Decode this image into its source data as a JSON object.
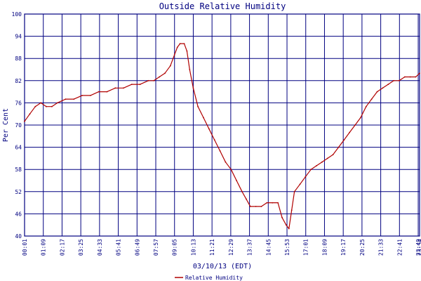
{
  "chart_data": {
    "type": "line",
    "title": "Outside Relative Humidity",
    "xlabel": "03/10/13 (EDT)",
    "ylabel": "Per Cent",
    "ylim": [
      40,
      100
    ],
    "yticks": [
      "40",
      "46",
      "52",
      "58",
      "64",
      "70",
      "76",
      "82",
      "88",
      "94",
      "100"
    ],
    "xticks": [
      "00:01",
      "01:09",
      "02:17",
      "03:25",
      "04:33",
      "05:41",
      "06:49",
      "07:57",
      "09:05",
      "10:13",
      "11:21",
      "12:29",
      "13:37",
      "14:45",
      "15:53",
      "17:01",
      "18:09",
      "19:17",
      "20:25",
      "21:33",
      "22:41",
      "23:49",
      "23:54"
    ],
    "xlim": [
      "00:01",
      "23:54"
    ],
    "grid": true,
    "legend": "bottom-center",
    "colors": {
      "series": "#b00000",
      "grid": "#000080",
      "text": "#000080"
    },
    "series": [
      {
        "name": "Relative Humidity",
        "x": [
          "00:01",
          "00:20",
          "00:40",
          "01:00",
          "01:20",
          "01:40",
          "02:00",
          "02:30",
          "03:00",
          "03:30",
          "04:00",
          "04:30",
          "05:00",
          "05:30",
          "06:00",
          "06:30",
          "07:00",
          "07:30",
          "07:50",
          "08:10",
          "08:30",
          "08:50",
          "09:05",
          "09:15",
          "09:25",
          "09:40",
          "09:50",
          "10:00",
          "10:13",
          "10:30",
          "10:50",
          "11:10",
          "11:30",
          "11:50",
          "12:10",
          "12:30",
          "12:50",
          "13:10",
          "13:25",
          "13:40",
          "14:00",
          "14:20",
          "14:40",
          "15:00",
          "15:20",
          "15:35",
          "15:50",
          "16:00",
          "16:10",
          "16:20",
          "16:40",
          "17:00",
          "17:20",
          "17:40",
          "18:00",
          "18:20",
          "18:40",
          "19:00",
          "19:20",
          "19:40",
          "20:00",
          "20:20",
          "20:40",
          "21:00",
          "21:20",
          "21:40",
          "22:00",
          "22:20",
          "22:40",
          "23:00",
          "23:20",
          "23:40",
          "23:54"
        ],
        "y": [
          71,
          73,
          75,
          76,
          75,
          75,
          76,
          77,
          77,
          78,
          78,
          79,
          79,
          80,
          80,
          81,
          81,
          82,
          82,
          83,
          84,
          86,
          89,
          91,
          92,
          92,
          90,
          85,
          80,
          75,
          72,
          69,
          66,
          63,
          60,
          58,
          55,
          52,
          50,
          48,
          48,
          48,
          49,
          49,
          49,
          45,
          43,
          42,
          47,
          52,
          54,
          56,
          58,
          59,
          60,
          61,
          62,
          64,
          66,
          68,
          70,
          72,
          75,
          77,
          79,
          80,
          81,
          82,
          82,
          83,
          83,
          83,
          84
        ]
      }
    ]
  }
}
